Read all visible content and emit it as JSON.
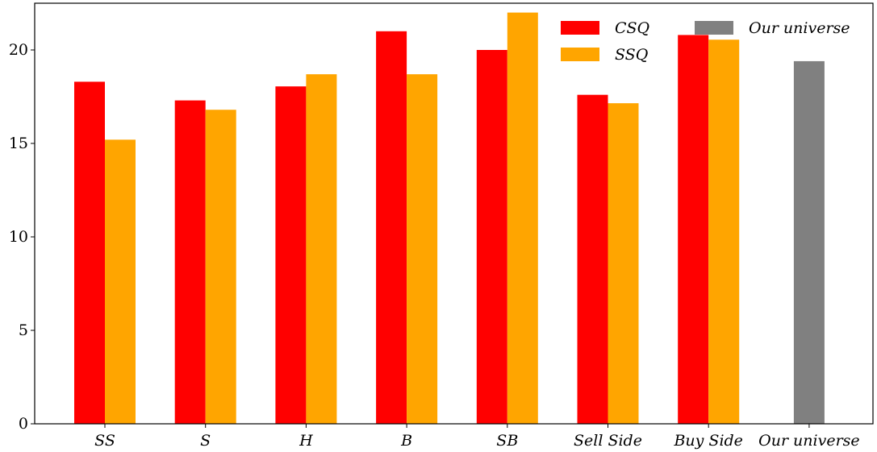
{
  "chart_data": {
    "type": "bar",
    "title": "",
    "xlabel": "",
    "ylabel": "",
    "ylim": [
      0,
      22.5
    ],
    "yticks": [
      0,
      5,
      10,
      15,
      20
    ],
    "grid": false,
    "legend_position": "top-right",
    "categories": [
      "SS",
      "S",
      "H",
      "B",
      "SB",
      "Sell Side",
      "Buy Side",
      "Our universe"
    ],
    "series": [
      {
        "name": "CSQ",
        "color": "#ff0000",
        "values": [
          18.3,
          17.3,
          18.05,
          21.0,
          20.0,
          17.6,
          20.8,
          null
        ]
      },
      {
        "name": "SSQ",
        "color": "#ffa500",
        "values": [
          15.2,
          16.8,
          18.7,
          18.7,
          22.0,
          17.15,
          20.55,
          null
        ]
      },
      {
        "name": "Our universe",
        "color": "#808080",
        "values": [
          null,
          null,
          null,
          null,
          null,
          null,
          null,
          19.4
        ]
      }
    ]
  }
}
